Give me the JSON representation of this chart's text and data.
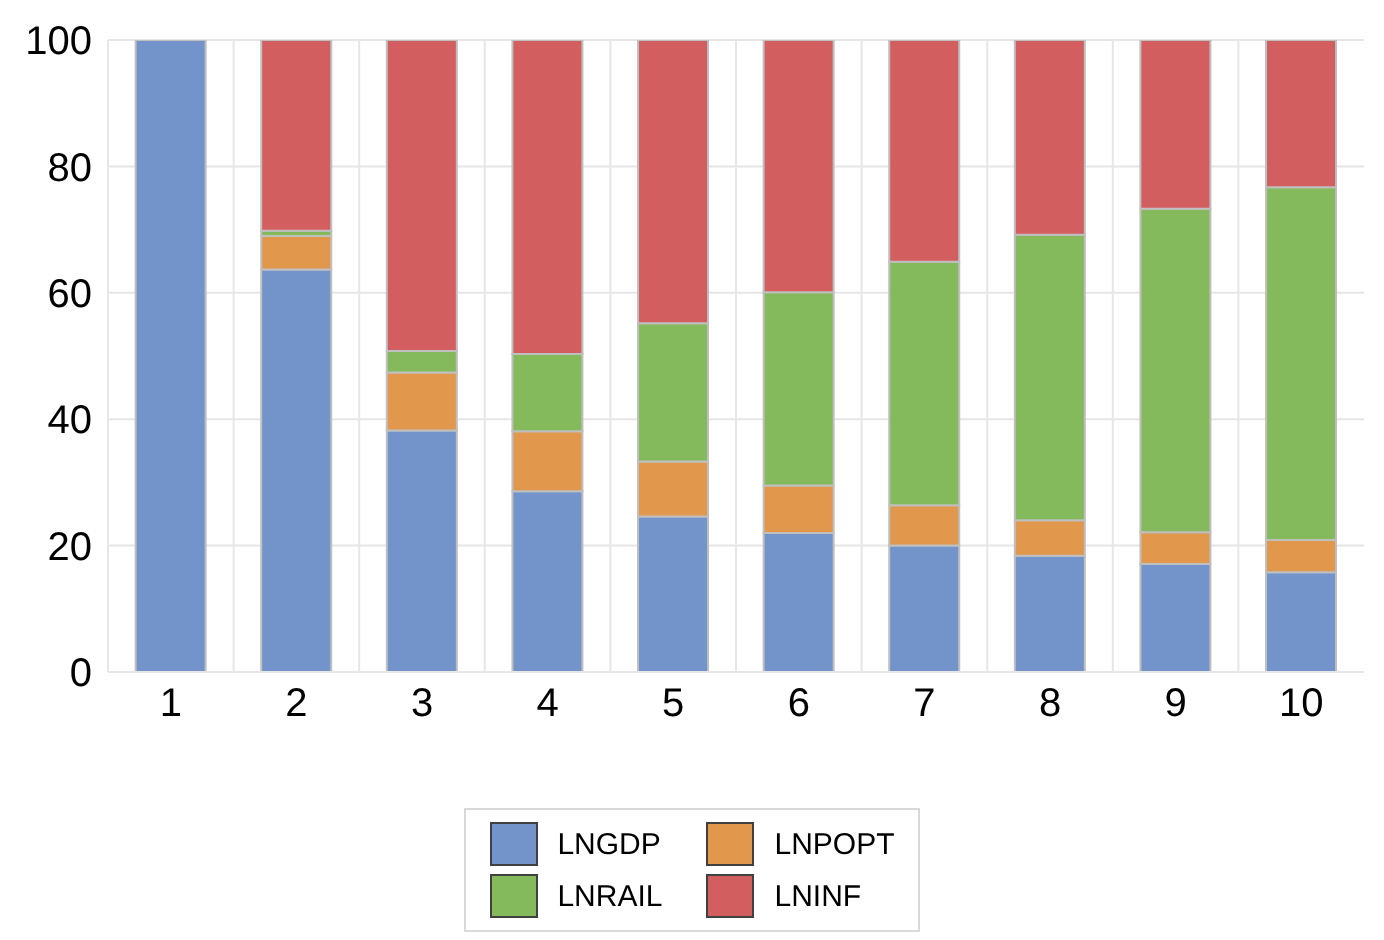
{
  "chart_data": {
    "type": "bar",
    "stacked": true,
    "categories": [
      "1",
      "2",
      "3",
      "4",
      "5",
      "6",
      "7",
      "8",
      "9",
      "10"
    ],
    "series": [
      {
        "name": "LNGDP",
        "color": "#7294cb",
        "values": [
          100,
          63.7,
          38.2,
          28.6,
          24.6,
          22.0,
          20.0,
          18.4,
          17.1,
          15.8
        ]
      },
      {
        "name": "LNPOPT",
        "color": "#e1974c",
        "values": [
          0,
          5.3,
          9.2,
          9.5,
          8.7,
          7.5,
          6.4,
          5.6,
          5.0,
          5.1
        ]
      },
      {
        "name": "LNRAIL",
        "color": "#84ba5b",
        "values": [
          0,
          0.8,
          3.4,
          12.2,
          21.9,
          30.6,
          38.5,
          45.2,
          51.2,
          55.8
        ]
      },
      {
        "name": "LNINF",
        "color": "#d35e60",
        "values": [
          0,
          30.2,
          49.2,
          49.7,
          44.8,
          39.9,
          35.1,
          30.8,
          26.7,
          23.3
        ]
      }
    ],
    "ylim": [
      0,
      100
    ],
    "yticks": [
      0,
      20,
      40,
      60,
      80,
      100
    ],
    "grid": true,
    "legend": "bottom"
  }
}
